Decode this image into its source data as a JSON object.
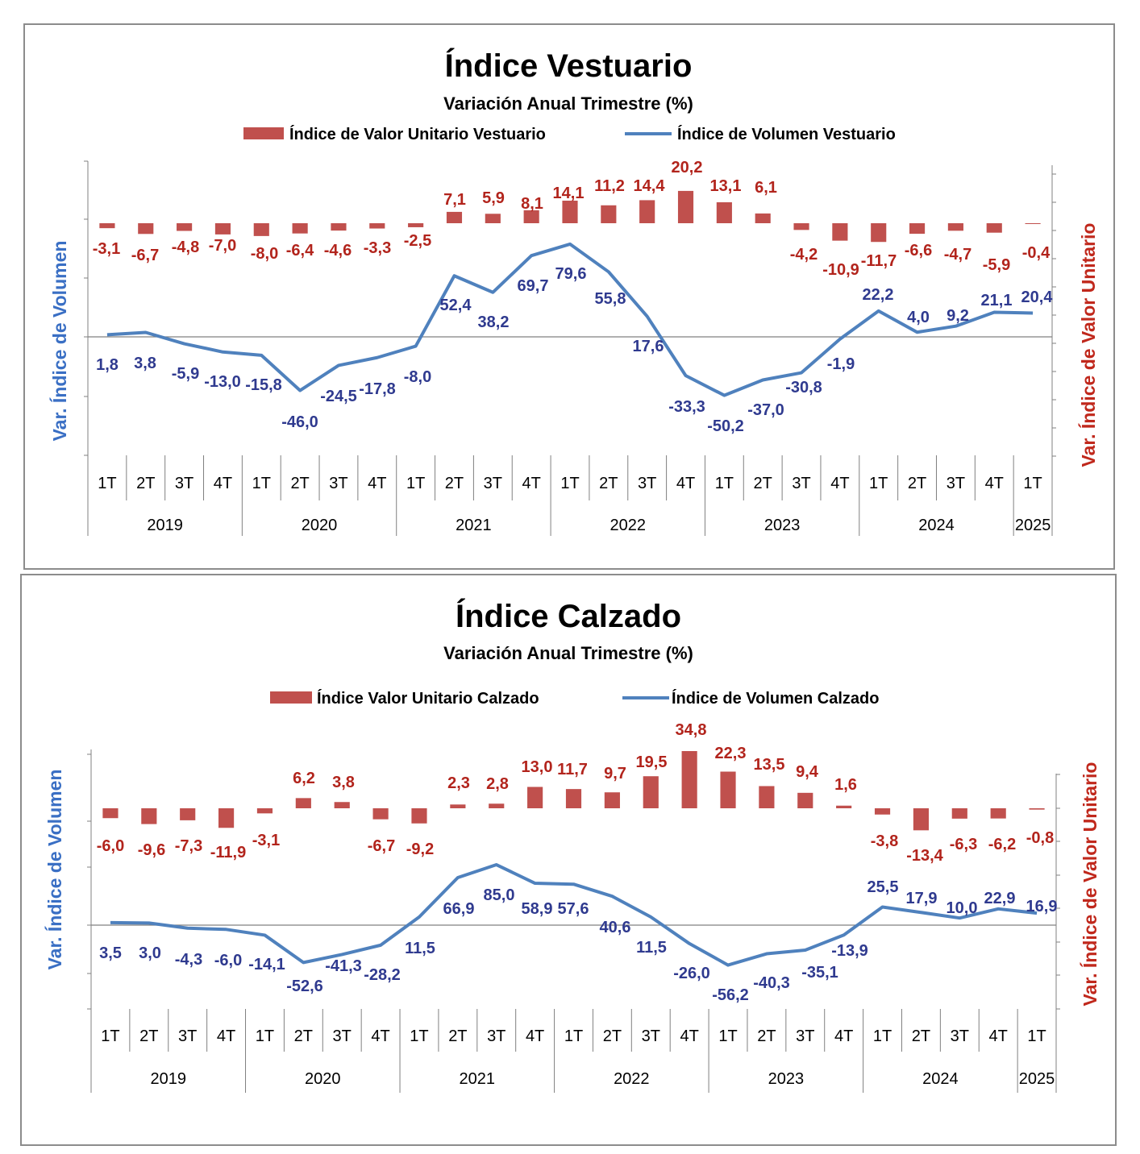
{
  "colors": {
    "bar": "#c0504d",
    "line": "#4f81bd",
    "bar_label": "#b2241c",
    "line_label": "#2f3a8f",
    "left_axis_title": "#3a6fc4",
    "right_axis_title": "#c0281c"
  },
  "chart_data": [
    {
      "type": "bar+line",
      "title": "Índice Vestuario",
      "subtitle": "Variación Anual Trimestre  (%)",
      "ylabel_left": "Var. Índice de Volumen",
      "ylabel_right": "Var. Índice de Valor Unitario",
      "legend_position": "top",
      "categories": [
        "1T",
        "2T",
        "3T",
        "4T",
        "1T",
        "2T",
        "3T",
        "4T",
        "1T",
        "2T",
        "3T",
        "4T",
        "1T",
        "2T",
        "3T",
        "4T",
        "1T",
        "2T",
        "3T",
        "4T",
        "1T",
        "2T",
        "3T",
        "4T",
        "1T"
      ],
      "years": [
        {
          "label": "2019",
          "start": 0,
          "end": 4
        },
        {
          "label": "2020",
          "start": 4,
          "end": 8
        },
        {
          "label": "2021",
          "start": 8,
          "end": 12
        },
        {
          "label": "2022",
          "start": 12,
          "end": 16
        },
        {
          "label": "2023",
          "start": 16,
          "end": 20
        },
        {
          "label": "2024",
          "start": 20,
          "end": 24
        },
        {
          "label": "2025",
          "start": 24,
          "end": 25
        }
      ],
      "series": [
        {
          "name": "Índice de Valor Unitario Vestuario",
          "kind": "bar",
          "axis": "right",
          "values": [
            -3.1,
            -6.7,
            -4.8,
            -7.0,
            -8.0,
            -6.4,
            -4.6,
            -3.3,
            -2.5,
            7.1,
            5.9,
            8.1,
            14.1,
            11.2,
            14.4,
            20.2,
            13.1,
            6.1,
            -4.2,
            -10.9,
            -11.7,
            -6.6,
            -4.7,
            -5.9,
            -0.4
          ],
          "labels": [
            "-3,1",
            "-6,7",
            "-4,8",
            "-7,0",
            "-8,0",
            "-6,4",
            "-4,6",
            "-3,3",
            "-2,5",
            "7,1",
            "5,9",
            "8,1",
            "14,1",
            "11,2",
            "14,4",
            "20,2",
            "13,1",
            "6,1",
            "-4,2",
            "-10,9",
            "-11,7",
            "-6,6",
            "-4,7",
            "-5,9",
            "-0,4"
          ]
        },
        {
          "name": "Índice de Volumen Vestuario",
          "kind": "line",
          "axis": "left",
          "values": [
            1.8,
            3.8,
            -5.9,
            -13.0,
            -15.8,
            -46.0,
            -24.5,
            -17.8,
            -8.0,
            52.4,
            38.2,
            69.7,
            79.6,
            55.8,
            17.6,
            -33.3,
            -50.2,
            -37.0,
            -30.8,
            -1.9,
            22.2,
            4.0,
            9.2,
            21.1,
            20.4
          ],
          "labels": [
            "1,8",
            "3,8",
            "-5,9",
            "-13,0",
            "-15,8",
            "-46,0",
            "-24,5",
            "-17,8",
            "-8,0",
            "52,4",
            "38,2",
            "69,7",
            "79,6",
            "55,8",
            "17,6",
            "-33,3",
            "-50,2",
            "-37,0",
            "-30,8",
            "-1,9",
            "22,2",
            "4,0",
            "9,2",
            "21,1",
            "20,4"
          ]
        }
      ]
    },
    {
      "type": "bar+line",
      "title": "Índice Calzado",
      "subtitle": "Variación Anual Trimestre  (%)",
      "ylabel_left": "Var. Índice de Volumen",
      "ylabel_right": "Var. Índice de Valor Unitario",
      "legend_position": "top",
      "categories": [
        "1T",
        "2T",
        "3T",
        "4T",
        "1T",
        "2T",
        "3T",
        "4T",
        "1T",
        "2T",
        "3T",
        "4T",
        "1T",
        "2T",
        "3T",
        "4T",
        "1T",
        "2T",
        "3T",
        "4T",
        "1T",
        "2T",
        "3T",
        "4T",
        "1T"
      ],
      "years": [
        {
          "label": "2019",
          "start": 0,
          "end": 4
        },
        {
          "label": "2020",
          "start": 4,
          "end": 8
        },
        {
          "label": "2021",
          "start": 8,
          "end": 12
        },
        {
          "label": "2022",
          "start": 12,
          "end": 16
        },
        {
          "label": "2023",
          "start": 16,
          "end": 20
        },
        {
          "label": "2024",
          "start": 20,
          "end": 24
        },
        {
          "label": "2025",
          "start": 24,
          "end": 25
        }
      ],
      "series": [
        {
          "name": "Índice Valor Unitario Calzado",
          "kind": "bar",
          "axis": "right",
          "values": [
            -6.0,
            -9.6,
            -7.3,
            -11.9,
            -3.1,
            6.2,
            3.8,
            -6.7,
            -9.2,
            2.3,
            2.8,
            13.0,
            11.7,
            9.7,
            19.5,
            34.8,
            22.3,
            13.5,
            9.4,
            1.6,
            -3.8,
            -13.4,
            -6.3,
            -6.2,
            -0.8
          ],
          "labels": [
            "-6,0",
            "-9,6",
            "-7,3",
            "-11,9",
            "-3,1",
            "6,2",
            "3,8",
            "-6,7",
            "-9,2",
            "2,3",
            "2,8",
            "13,0",
            "11,7",
            "9,7",
            "19,5",
            "34,8",
            "22,3",
            "13,5",
            "9,4",
            "1,6",
            "-3,8",
            "-13,4",
            "-6,3",
            "-6,2",
            "-0,8"
          ]
        },
        {
          "name": "Índice de Volumen Calzado",
          "kind": "line",
          "axis": "left",
          "values": [
            3.5,
            3.0,
            -4.3,
            -6.0,
            -14.1,
            -52.6,
            -41.3,
            -28.2,
            11.5,
            66.9,
            85.0,
            58.9,
            57.6,
            40.6,
            11.5,
            -26.0,
            -56.2,
            -40.3,
            -35.1,
            -13.9,
            25.5,
            17.9,
            10.0,
            22.9,
            16.9
          ],
          "labels": [
            "3,5",
            "3,0",
            "-4,3",
            "-6,0",
            "-14,1",
            "-52,6",
            "-41,3",
            "-28,2",
            "11,5",
            "66,9",
            "85,0",
            "58,9",
            "57,6",
            "40,6",
            "11,5",
            "-26,0",
            "-56,2",
            "-40,3",
            "-35,1",
            "-13,9",
            "25,5",
            "17,9",
            "10,0",
            "22,9",
            "16,9"
          ]
        }
      ]
    }
  ]
}
